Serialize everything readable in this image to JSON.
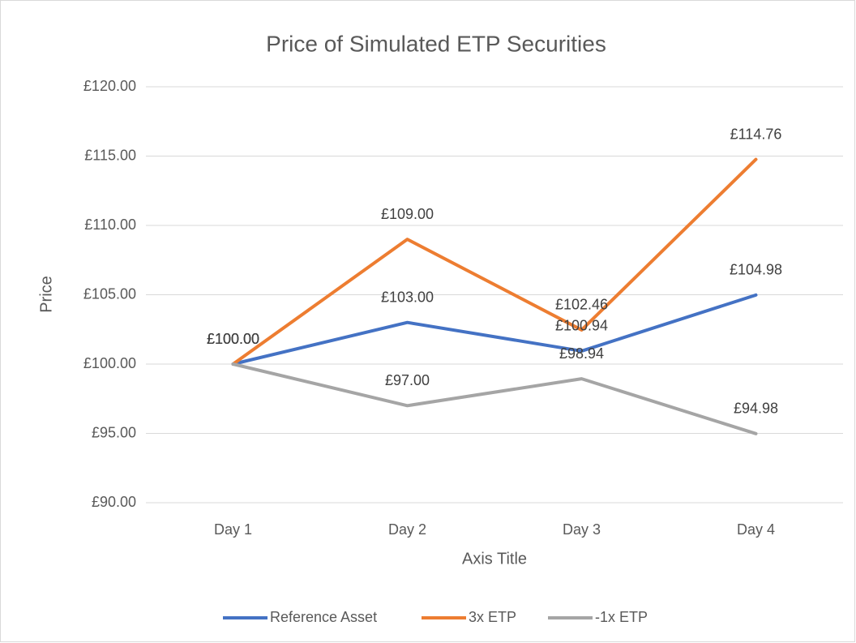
{
  "chart_data": {
    "type": "line",
    "title": "Price of Simulated  ETP Securities",
    "x_label": "Axis Title",
    "y_label": "Price",
    "categories": [
      "Day 1",
      "Day 2",
      "Day 3",
      "Day 4"
    ],
    "series": [
      {
        "name": "Reference Asset",
        "color": "#4472c4",
        "values": [
          100,
          103,
          100.94,
          104.98
        ],
        "value_labels": [
          "£100.00",
          "£103.00",
          "£100.94",
          "£104.98"
        ]
      },
      {
        "name": "3x ETP",
        "color": "#ed7d31",
        "values": [
          100,
          109,
          102.46,
          114.76
        ],
        "value_labels": [
          "£100.00",
          "£109.00",
          "£102.46",
          "£114.76"
        ]
      },
      {
        "name": "-1x ETP",
        "color": "#a5a5a5",
        "values": [
          100,
          97,
          98.94,
          94.98
        ],
        "value_labels": [
          "£100.00",
          "£97.00",
          "£98.94",
          "£94.98"
        ]
      }
    ],
    "ylim": [
      90,
      120
    ],
    "yticks": [
      {
        "value": 90,
        "label": "£90.00"
      },
      {
        "value": 95,
        "label": "£95.00"
      },
      {
        "value": 100,
        "label": "£100.00"
      },
      {
        "value": 105,
        "label": "£105.00"
      },
      {
        "value": 110,
        "label": "£110.00"
      },
      {
        "value": 115,
        "label": "£115.00"
      },
      {
        "value": 120,
        "label": "£120.00"
      }
    ],
    "grid": true,
    "legend": "bottom"
  }
}
